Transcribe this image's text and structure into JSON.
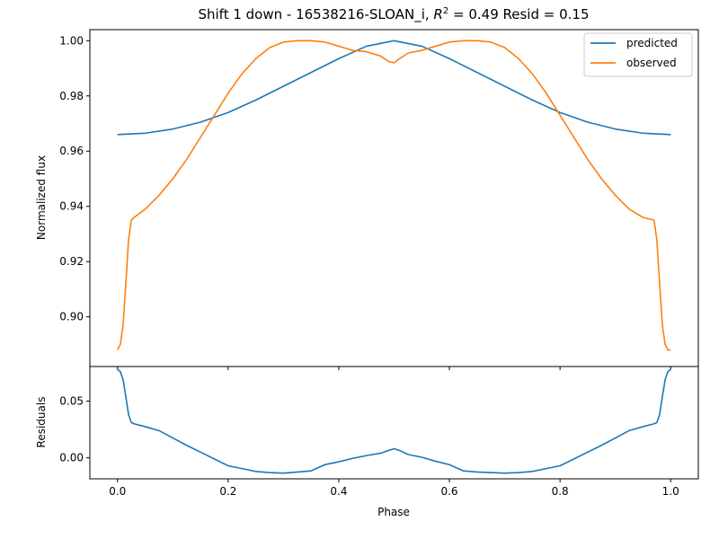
{
  "title": "Shift 1 down - 16538216-SLOAN_i, R² = 0.49 Resid = 0.15",
  "title_parts": {
    "prefix": "Shift 1 down - 16538216-SLOAN_i, ",
    "r_symbol": "R",
    "r_exp": "2",
    "suffix": " = 0.49 Resid = 0.15"
  },
  "colors": {
    "predicted": "#1f77b4",
    "observed": "#ff7f0e",
    "residuals": "#1f77b4"
  },
  "chart_data": [
    {
      "type": "line",
      "panel": "top",
      "ylabel": "Normalized flux",
      "xlim": [
        -0.05,
        1.05
      ],
      "ylim": [
        0.882,
        1.004
      ],
      "yticks": [
        0.9,
        0.92,
        0.94,
        0.96,
        0.98,
        1.0
      ],
      "ytick_labels": [
        "0.90",
        "0.92",
        "0.94",
        "0.96",
        "0.98",
        "1.00"
      ],
      "legend": "top-right",
      "series": [
        {
          "name": "predicted",
          "color": "#1f77b4",
          "x": [
            0.0,
            0.05,
            0.1,
            0.15,
            0.2,
            0.25,
            0.3,
            0.35,
            0.4,
            0.45,
            0.5,
            0.55,
            0.6,
            0.65,
            0.7,
            0.75,
            0.8,
            0.85,
            0.9,
            0.95,
            1.0
          ],
          "y": [
            0.966,
            0.9665,
            0.968,
            0.9705,
            0.974,
            0.9785,
            0.9835,
            0.9885,
            0.9935,
            0.998,
            1.0,
            0.998,
            0.9935,
            0.9885,
            0.9835,
            0.9785,
            0.974,
            0.9705,
            0.968,
            0.9665,
            0.966
          ]
        },
        {
          "name": "observed",
          "color": "#ff7f0e",
          "x": [
            0.0,
            0.005,
            0.01,
            0.015,
            0.02,
            0.025,
            0.03,
            0.05,
            0.075,
            0.1,
            0.125,
            0.15,
            0.175,
            0.2,
            0.225,
            0.25,
            0.275,
            0.3,
            0.325,
            0.35,
            0.375,
            0.4,
            0.425,
            0.45,
            0.475,
            0.49,
            0.5,
            0.51,
            0.525,
            0.55,
            0.575,
            0.6,
            0.625,
            0.65,
            0.675,
            0.7,
            0.725,
            0.75,
            0.775,
            0.8,
            0.825,
            0.85,
            0.875,
            0.9,
            0.925,
            0.95,
            0.97,
            0.975,
            0.98,
            0.985,
            0.99,
            0.995,
            1.0
          ],
          "y": [
            0.888,
            0.89,
            0.897,
            0.912,
            0.928,
            0.935,
            0.936,
            0.939,
            0.944,
            0.95,
            0.957,
            0.965,
            0.973,
            0.981,
            0.988,
            0.9935,
            0.9975,
            0.9995,
            1.0,
            1.0,
            0.9995,
            0.998,
            0.9965,
            0.996,
            0.9945,
            0.9925,
            0.992,
            0.9935,
            0.9955,
            0.9965,
            0.998,
            0.9995,
            1.0,
            1.0,
            0.9995,
            0.9975,
            0.9935,
            0.988,
            0.981,
            0.973,
            0.965,
            0.957,
            0.95,
            0.944,
            0.939,
            0.936,
            0.935,
            0.928,
            0.912,
            0.897,
            0.89,
            0.888,
            0.888
          ]
        }
      ]
    },
    {
      "type": "line",
      "panel": "bottom",
      "ylabel": "Residuals",
      "xlabel": "Phase",
      "xlim": [
        -0.05,
        1.05
      ],
      "ylim": [
        -0.0185,
        0.0805
      ],
      "yticks": [
        0.0,
        0.05
      ],
      "ytick_labels": [
        "0.00",
        "0.05"
      ],
      "xticks": [
        0.0,
        0.2,
        0.4,
        0.6,
        0.8,
        1.0
      ],
      "xtick_labels": [
        "0.0",
        "0.2",
        "0.4",
        "0.6",
        "0.8",
        "1.0"
      ],
      "series": [
        {
          "color": "#1f77b4",
          "x": [
            0.0,
            0.005,
            0.01,
            0.015,
            0.02,
            0.025,
            0.03,
            0.05,
            0.075,
            0.1,
            0.125,
            0.15,
            0.175,
            0.2,
            0.225,
            0.25,
            0.275,
            0.3,
            0.325,
            0.35,
            0.375,
            0.4,
            0.425,
            0.45,
            0.475,
            0.49,
            0.5,
            0.51,
            0.525,
            0.55,
            0.575,
            0.6,
            0.625,
            0.65,
            0.675,
            0.7,
            0.725,
            0.75,
            0.775,
            0.8,
            0.825,
            0.85,
            0.875,
            0.9,
            0.925,
            0.95,
            0.97,
            0.975,
            0.98,
            0.985,
            0.99,
            0.995,
            1.0
          ],
          "y": [
            0.078,
            0.076,
            0.069,
            0.054,
            0.038,
            0.031,
            0.03,
            0.0275,
            0.024,
            0.0175,
            0.011,
            0.005,
            -0.001,
            -0.007,
            -0.0095,
            -0.012,
            -0.013,
            -0.0135,
            -0.0125,
            -0.0115,
            -0.006,
            -0.0035,
            -0.0005,
            0.002,
            0.004,
            0.0065,
            0.008,
            0.0065,
            0.003,
            0.0005,
            -0.003,
            -0.006,
            -0.0115,
            -0.0125,
            -0.013,
            -0.0135,
            -0.013,
            -0.012,
            -0.0095,
            -0.007,
            -0.001,
            0.005,
            0.011,
            0.0175,
            0.024,
            0.0275,
            0.03,
            0.031,
            0.038,
            0.054,
            0.069,
            0.076,
            0.078
          ]
        }
      ]
    }
  ]
}
